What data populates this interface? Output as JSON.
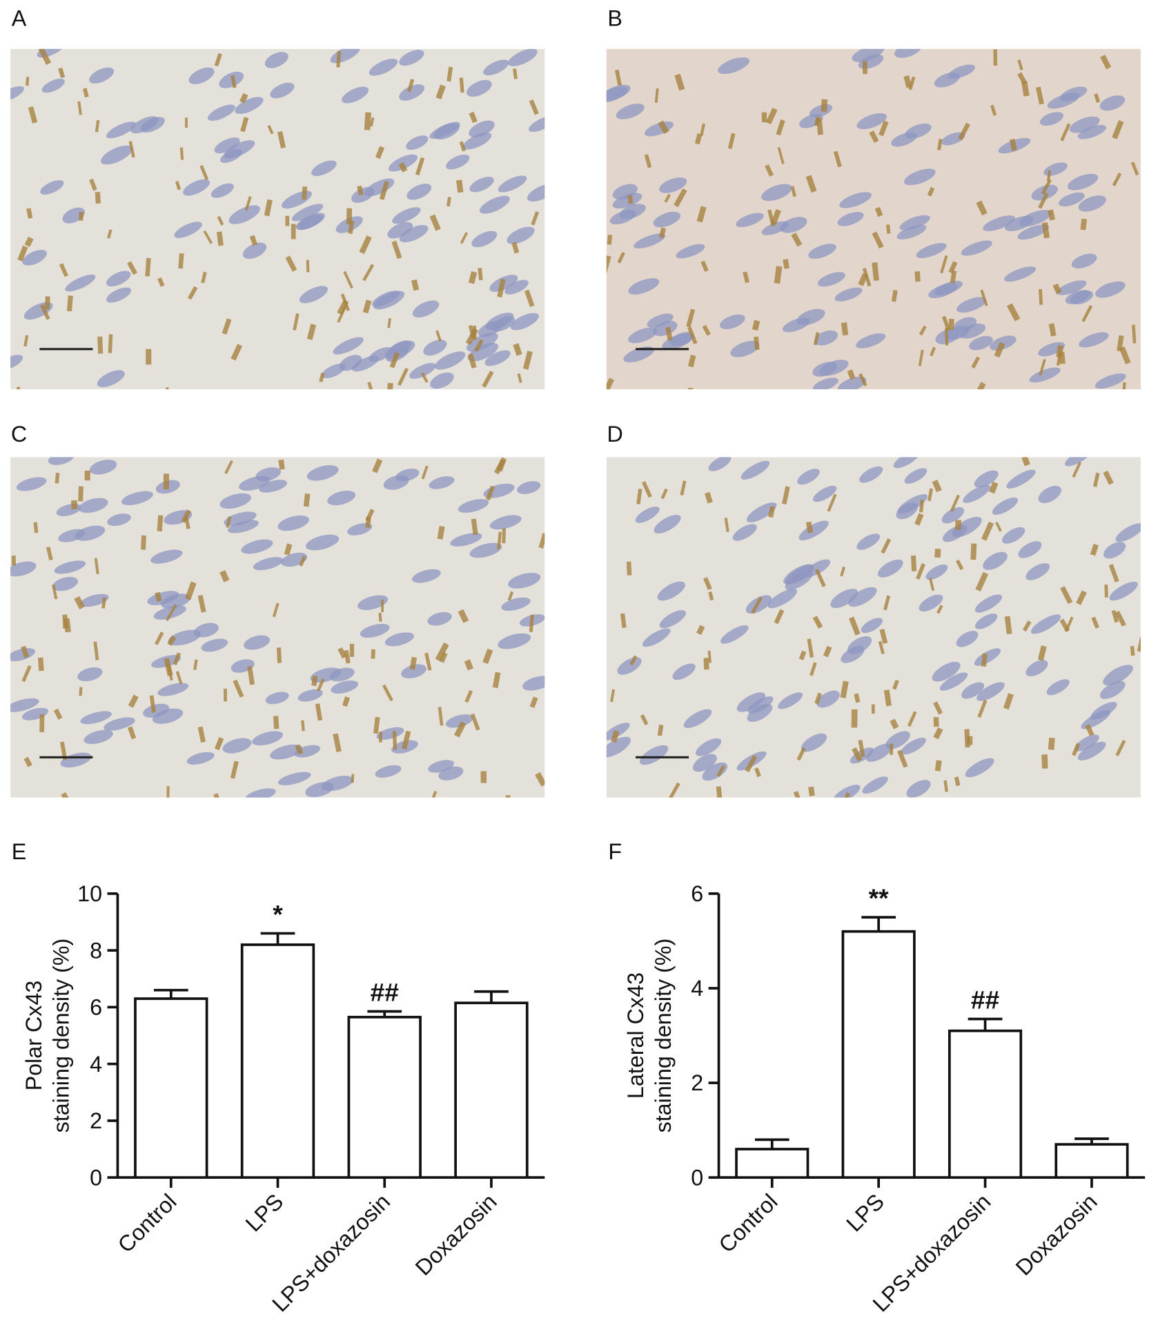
{
  "panels": [
    "A",
    "B",
    "C",
    "D"
  ],
  "chart_data": [
    {
      "type": "bar",
      "panel": "E",
      "ylabel": [
        "Polar Cx43",
        "staining density (%)"
      ],
      "categories": [
        "Control",
        "LPS",
        "LPS+doxazosin",
        "Doxazosin"
      ],
      "values": [
        6.3,
        8.2,
        5.65,
        6.15
      ],
      "errors": [
        0.3,
        0.4,
        0.2,
        0.4
      ],
      "markers": [
        null,
        "*",
        "##",
        null
      ],
      "color": "#ffffff",
      "ylim": [
        0,
        10
      ],
      "yticks": [
        0,
        2,
        4,
        6,
        8,
        10
      ]
    },
    {
      "type": "bar",
      "panel": "F",
      "ylabel": [
        "Lateral Cx43",
        "staining density (%)"
      ],
      "categories": [
        "Control",
        "LPS",
        "LPS+doxazosin",
        "Doxazosin"
      ],
      "values": [
        0.6,
        5.2,
        3.1,
        0.7
      ],
      "errors": [
        0.2,
        0.3,
        0.25,
        0.12
      ],
      "markers": [
        null,
        "**",
        "##",
        null
      ],
      "color": "#ffffff",
      "ylim": [
        0,
        6
      ],
      "yticks": [
        0,
        2,
        4,
        6
      ]
    }
  ]
}
